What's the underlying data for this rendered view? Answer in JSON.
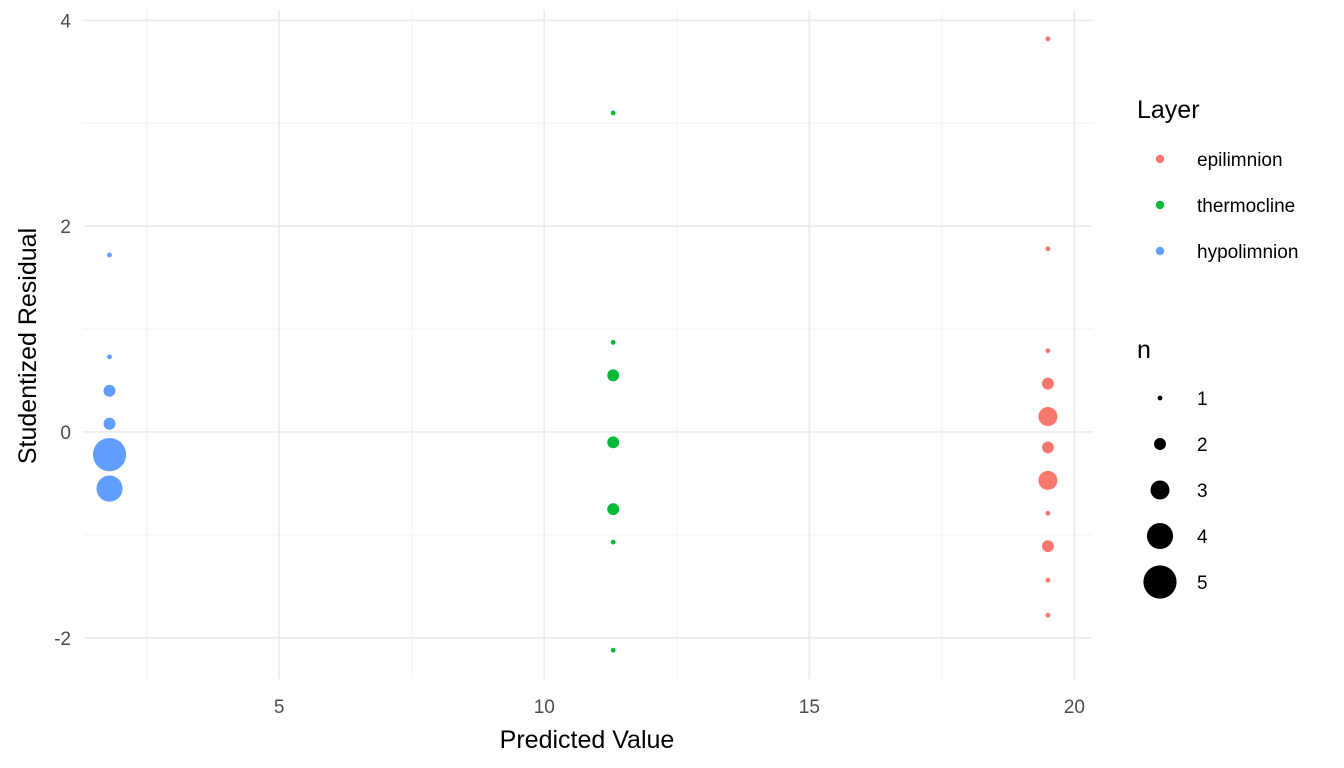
{
  "chart_data": {
    "type": "scatter",
    "xlabel": "Predicted Value",
    "ylabel": "Studentized Residual",
    "xlim": [
      1.3,
      20.35
    ],
    "ylim": [
      -2.4,
      4.1
    ],
    "x_ticks": [
      5,
      10,
      15,
      20
    ],
    "y_ticks": [
      -2,
      0,
      2,
      4
    ],
    "x_tick_labels": [
      "5",
      "10",
      "15",
      "20"
    ],
    "y_tick_labels": [
      "-2",
      "0",
      "2",
      "4"
    ],
    "grid": true,
    "legend_position": "right",
    "color_legend": {
      "title": "Layer",
      "entries": [
        {
          "label": "epilimnion",
          "color": "#F8766D"
        },
        {
          "label": "thermocline",
          "color": "#00BA38"
        },
        {
          "label": "hypolimnion",
          "color": "#619CFF"
        }
      ]
    },
    "size_legend": {
      "title": "n",
      "entries": [
        {
          "label": "1",
          "value": 1
        },
        {
          "label": "2",
          "value": 2
        },
        {
          "label": "3",
          "value": 3
        },
        {
          "label": "4",
          "value": 4
        },
        {
          "label": "5",
          "value": 5
        }
      ]
    },
    "series": [
      {
        "name": "hypolimnion",
        "color": "#619CFF",
        "points": [
          {
            "x": 1.8,
            "y": 1.72,
            "n": 1
          },
          {
            "x": 1.8,
            "y": 0.73,
            "n": 1
          },
          {
            "x": 1.8,
            "y": 0.4,
            "n": 2
          },
          {
            "x": 1.8,
            "y": 0.08,
            "n": 2
          },
          {
            "x": 1.8,
            "y": -0.22,
            "n": 5
          },
          {
            "x": 1.8,
            "y": -0.55,
            "n": 4
          }
        ]
      },
      {
        "name": "thermocline",
        "color": "#00BA38",
        "points": [
          {
            "x": 11.3,
            "y": 3.1,
            "n": 1
          },
          {
            "x": 11.3,
            "y": 0.87,
            "n": 1
          },
          {
            "x": 11.3,
            "y": 0.55,
            "n": 2
          },
          {
            "x": 11.3,
            "y": -0.1,
            "n": 2
          },
          {
            "x": 11.3,
            "y": -0.75,
            "n": 2
          },
          {
            "x": 11.3,
            "y": -1.07,
            "n": 1
          },
          {
            "x": 11.3,
            "y": -2.12,
            "n": 1
          }
        ]
      },
      {
        "name": "epilimnion",
        "color": "#F8766D",
        "points": [
          {
            "x": 19.5,
            "y": 3.82,
            "n": 1
          },
          {
            "x": 19.5,
            "y": 1.78,
            "n": 1
          },
          {
            "x": 19.5,
            "y": 0.79,
            "n": 1
          },
          {
            "x": 19.5,
            "y": 0.47,
            "n": 2
          },
          {
            "x": 19.5,
            "y": 0.15,
            "n": 3
          },
          {
            "x": 19.5,
            "y": -0.15,
            "n": 2
          },
          {
            "x": 19.5,
            "y": -0.47,
            "n": 3
          },
          {
            "x": 19.5,
            "y": -0.79,
            "n": 1
          },
          {
            "x": 19.5,
            "y": -1.11,
            "n": 2
          },
          {
            "x": 19.5,
            "y": -1.44,
            "n": 1
          },
          {
            "x": 19.5,
            "y": -1.78,
            "n": 1
          }
        ]
      }
    ]
  }
}
